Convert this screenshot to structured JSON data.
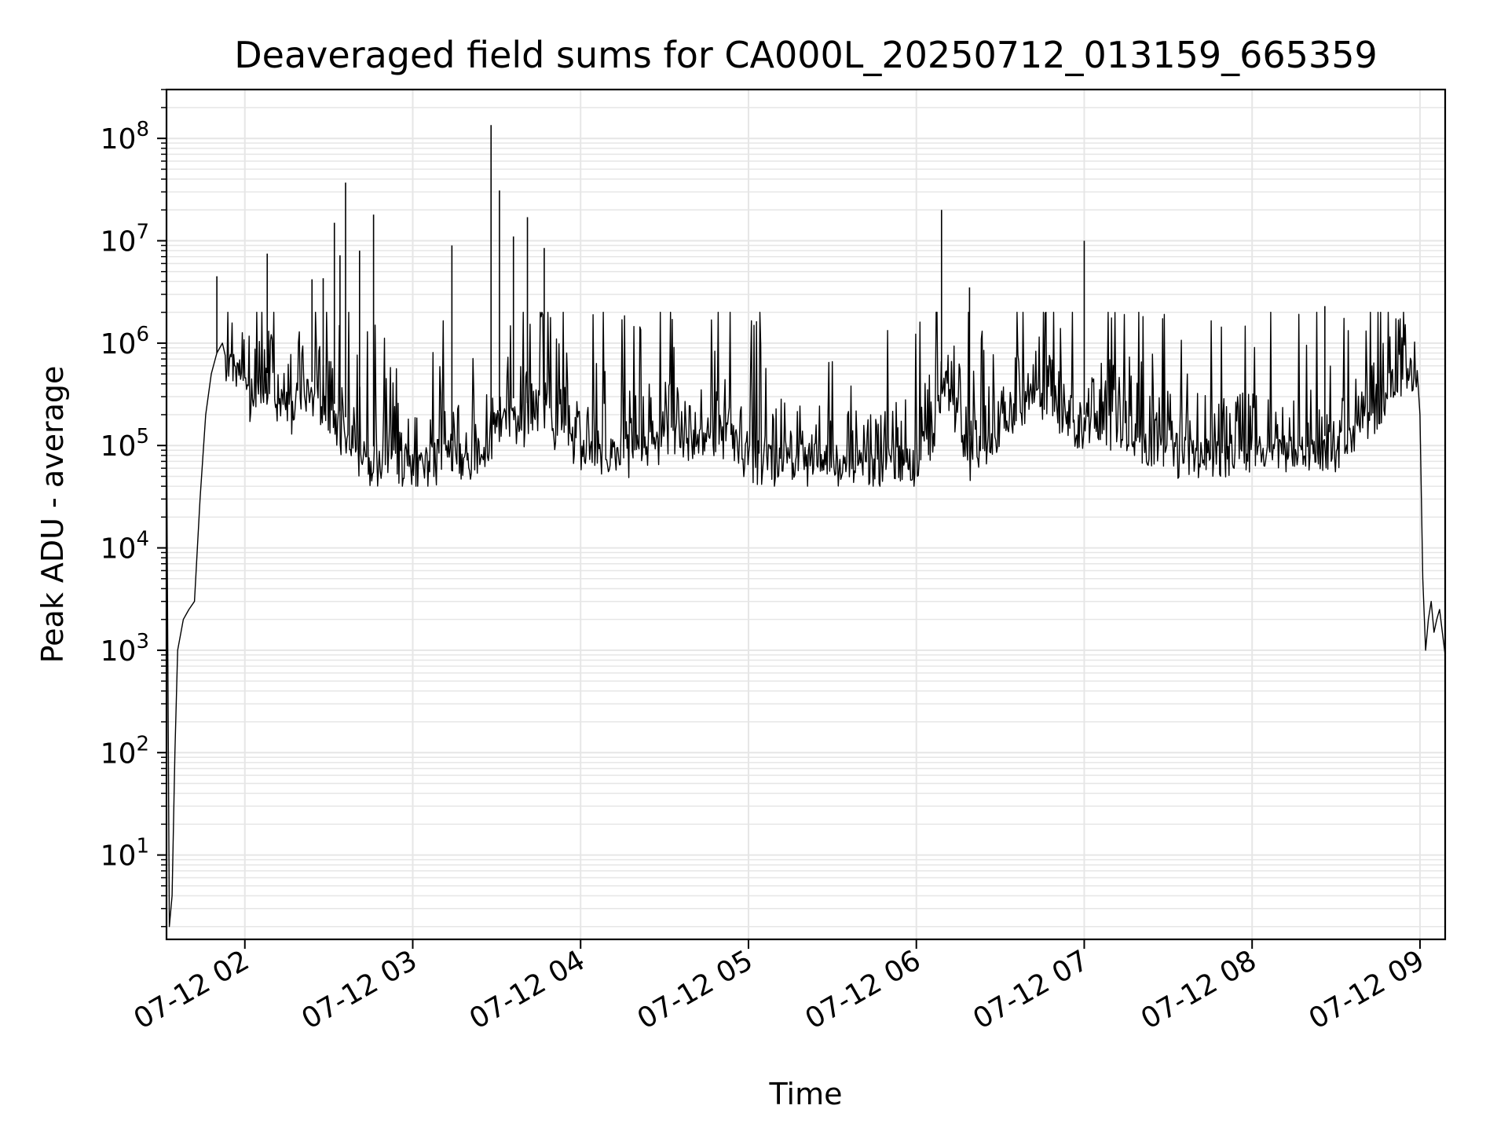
{
  "chart_data": {
    "type": "line",
    "title": "Deaveraged field sums for CA000L_20250712_013159_665359",
    "xlabel": "Time",
    "ylabel": "Peak ADU - average",
    "yscale": "log",
    "ylim": [
      1.5,
      300000000
    ],
    "xlim": [
      "2025-07-12 01:32",
      "2025-07-12 09:09"
    ],
    "grid": true,
    "line_color": "#000000",
    "grid_color": "#e6e6e6",
    "x_ticks": [
      {
        "t": "2025-07-12 02:00",
        "label": "07-12 02"
      },
      {
        "t": "2025-07-12 03:00",
        "label": "07-12 03"
      },
      {
        "t": "2025-07-12 04:00",
        "label": "07-12 04"
      },
      {
        "t": "2025-07-12 05:00",
        "label": "07-12 05"
      },
      {
        "t": "2025-07-12 06:00",
        "label": "07-12 06"
      },
      {
        "t": "2025-07-12 07:00",
        "label": "07-12 07"
      },
      {
        "t": "2025-07-12 08:00",
        "label": "07-12 08"
      },
      {
        "t": "2025-07-12 09:00",
        "label": "07-12 09"
      }
    ],
    "y_ticks": [
      {
        "value": 10,
        "base": "10",
        "exp": "1"
      },
      {
        "value": 100,
        "base": "10",
        "exp": "2"
      },
      {
        "value": 1000,
        "base": "10",
        "exp": "3"
      },
      {
        "value": 10000,
        "base": "10",
        "exp": "4"
      },
      {
        "value": 100000,
        "base": "10",
        "exp": "5"
      },
      {
        "value": 1000000,
        "base": "10",
        "exp": "6"
      },
      {
        "value": 10000000,
        "base": "10",
        "exp": "7"
      },
      {
        "value": 100000000,
        "base": "10",
        "exp": "8"
      }
    ],
    "series": [
      {
        "x": [
          "2025-07-12 01:32",
          "2025-07-12 01:33",
          "2025-07-12 01:34",
          "2025-07-12 01:35",
          "2025-07-12 01:36",
          "2025-07-12 01:38",
          "2025-07-12 01:40",
          "2025-07-12 01:42",
          "2025-07-12 01:44",
          "2025-07-12 01:46",
          "2025-07-12 01:48",
          "2025-07-12 01:50",
          "2025-07-12 01:52",
          "2025-07-12 01:55",
          "2025-07-12 01:58",
          "2025-07-12 02:00",
          "2025-07-12 02:05",
          "2025-07-12 02:10",
          "2025-07-12 02:15",
          "2025-07-12 02:20",
          "2025-07-12 02:25",
          "2025-07-12 02:30",
          "2025-07-12 02:35",
          "2025-07-12 02:40",
          "2025-07-12 02:45",
          "2025-07-12 02:50",
          "2025-07-12 02:55",
          "2025-07-12 03:00",
          "2025-07-12 03:10",
          "2025-07-12 03:20",
          "2025-07-12 03:28",
          "2025-07-12 03:30",
          "2025-07-12 03:35",
          "2025-07-12 03:40",
          "2025-07-12 03:45",
          "2025-07-12 03:50",
          "2025-07-12 04:00",
          "2025-07-12 04:10",
          "2025-07-12 04:20",
          "2025-07-12 04:30",
          "2025-07-12 04:40",
          "2025-07-12 04:50",
          "2025-07-12 05:00",
          "2025-07-12 05:10",
          "2025-07-12 05:20",
          "2025-07-12 05:30",
          "2025-07-12 05:40",
          "2025-07-12 05:50",
          "2025-07-12 06:00",
          "2025-07-12 06:05",
          "2025-07-12 06:10",
          "2025-07-12 06:15",
          "2025-07-12 06:20",
          "2025-07-12 06:30",
          "2025-07-12 06:40",
          "2025-07-12 06:50",
          "2025-07-12 07:00",
          "2025-07-12 07:10",
          "2025-07-12 07:20",
          "2025-07-12 07:30",
          "2025-07-12 07:40",
          "2025-07-12 07:50",
          "2025-07-12 08:00",
          "2025-07-12 08:10",
          "2025-07-12 08:20",
          "2025-07-12 08:30",
          "2025-07-12 08:40",
          "2025-07-12 08:45",
          "2025-07-12 08:50",
          "2025-07-12 08:55",
          "2025-07-12 08:59",
          "2025-07-12 09:00",
          "2025-07-12 09:01",
          "2025-07-12 09:02",
          "2025-07-12 09:03",
          "2025-07-12 09:04",
          "2025-07-12 09:05",
          "2025-07-12 09:06",
          "2025-07-12 09:07",
          "2025-07-12 09:08",
          "2025-07-12 09:09"
        ],
        "y": [
          180000,
          2,
          4,
          100,
          1000,
          2000,
          2500,
          3000,
          30000,
          200000,
          500000,
          800000,
          1000000,
          900000,
          700000,
          500000,
          400000,
          600000,
          300000,
          500000,
          400000,
          300000,
          200000,
          150000,
          100000,
          90000,
          100000,
          90000,
          120000,
          100000,
          150000,
          200000,
          300000,
          250000,
          300000,
          250000,
          150000,
          120000,
          130000,
          200000,
          150000,
          200000,
          120000,
          100000,
          110000,
          100000,
          90000,
          100000,
          100000,
          200000,
          600000,
          300000,
          100000,
          200000,
          500000,
          300000,
          200000,
          250000,
          150000,
          130000,
          120000,
          110000,
          120000,
          130000,
          130000,
          120000,
          200000,
          300000,
          600000,
          700000,
          800000,
          200000,
          5000,
          1000,
          2000,
          3000,
          1500,
          2000,
          2500,
          1500,
          900
        ]
      }
    ],
    "spikes": [
      {
        "t": "2025-07-12 01:50",
        "value": 4500000
      },
      {
        "t": "2025-07-12 02:08",
        "value": 7500000
      },
      {
        "t": "2025-07-12 02:24",
        "value": 4200000
      },
      {
        "t": "2025-07-12 02:28",
        "value": 4300000
      },
      {
        "t": "2025-07-12 02:32",
        "value": 15000000
      },
      {
        "t": "2025-07-12 02:34",
        "value": 7200000
      },
      {
        "t": "2025-07-12 02:36",
        "value": 37000000
      },
      {
        "t": "2025-07-12 02:41",
        "value": 8000000
      },
      {
        "t": "2025-07-12 02:46",
        "value": 18000000
      },
      {
        "t": "2025-07-12 03:14",
        "value": 9000000
      },
      {
        "t": "2025-07-12 03:28",
        "value": 135000000
      },
      {
        "t": "2025-07-12 03:31",
        "value": 31000000
      },
      {
        "t": "2025-07-12 03:36",
        "value": 11000000
      },
      {
        "t": "2025-07-12 03:41",
        "value": 17000000
      },
      {
        "t": "2025-07-12 03:47",
        "value": 8500000
      },
      {
        "t": "2025-07-12 06:09",
        "value": 20000000
      },
      {
        "t": "2025-07-12 06:19",
        "value": 3500000
      },
      {
        "t": "2025-07-12 07:00",
        "value": 10000000
      },
      {
        "t": "2025-07-12 08:26",
        "value": 2300000
      }
    ]
  }
}
